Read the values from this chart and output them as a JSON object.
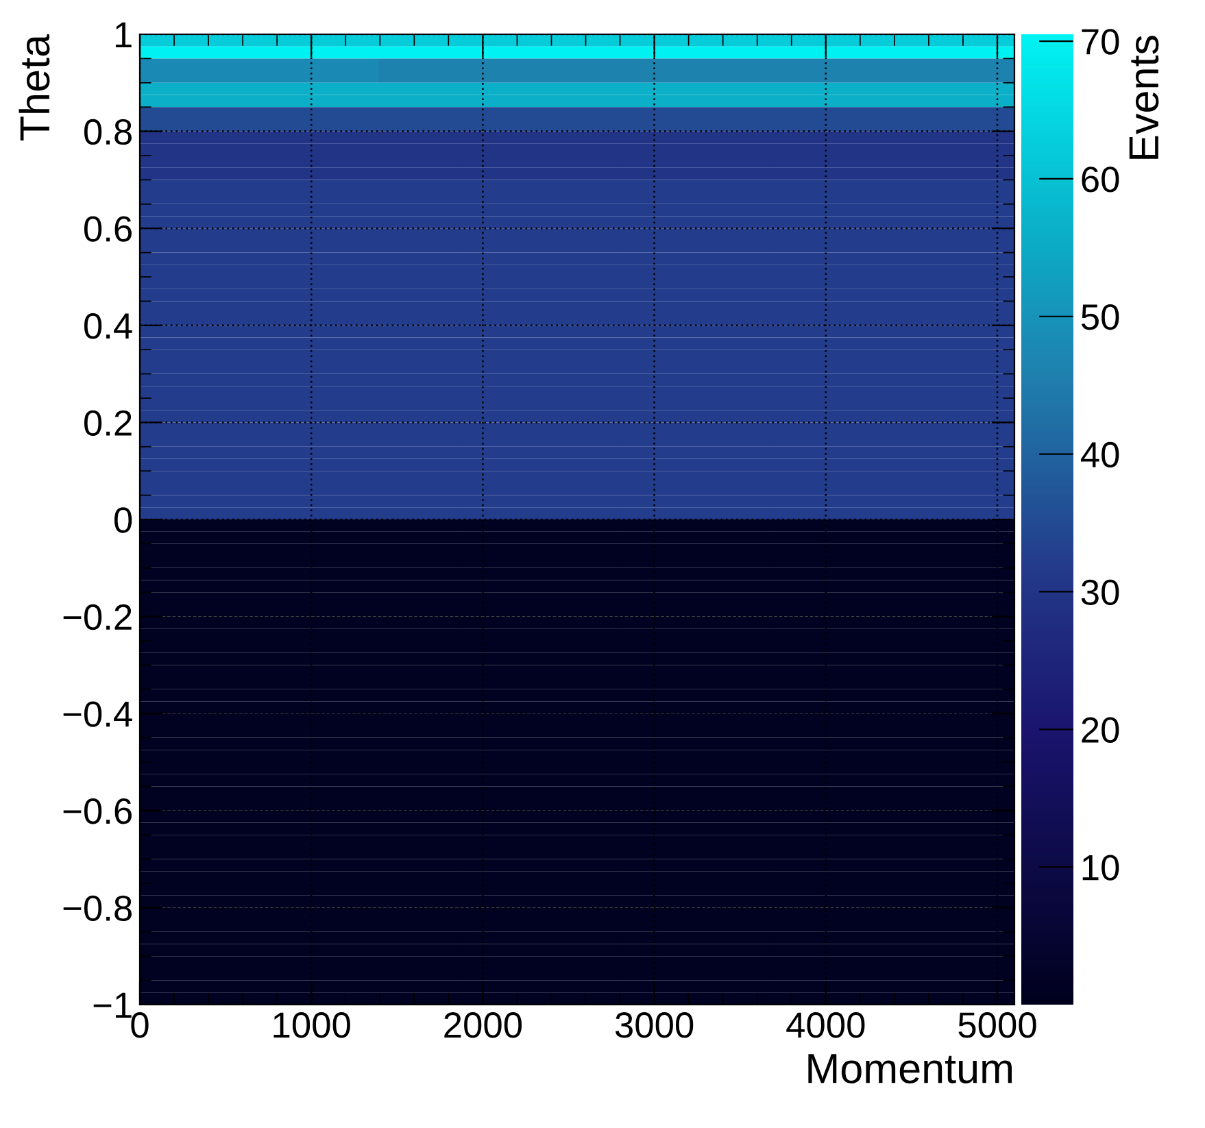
{
  "chart_data": {
    "type": "heatmap",
    "xlabel": "Momentum",
    "ylabel": "Theta",
    "clabel": "Events",
    "cells": [
      [
        62,
        62,
        62,
        62,
        62,
        62,
        62,
        62,
        62,
        62,
        62
      ],
      [
        70,
        70,
        70,
        70,
        70,
        70,
        70,
        70,
        70,
        70,
        70
      ],
      [
        48,
        48,
        48,
        46,
        46,
        46,
        46,
        46,
        46,
        46,
        46
      ],
      [
        48,
        48,
        48,
        46,
        46,
        46,
        46,
        46,
        46,
        46,
        46
      ],
      [
        56,
        56,
        56,
        56,
        56,
        56,
        56,
        56,
        56,
        56,
        56
      ],
      [
        56,
        56,
        56,
        56,
        56,
        56,
        56,
        56,
        56,
        56,
        56
      ],
      [
        35,
        35,
        35,
        35,
        35,
        35,
        35,
        35,
        35,
        35,
        35
      ],
      [
        35,
        35,
        35,
        35,
        35,
        35,
        35,
        35,
        35,
        35,
        35
      ],
      [
        30,
        30,
        30,
        30,
        30,
        30,
        30,
        30,
        30,
        30,
        30
      ],
      [
        30,
        30,
        30,
        30,
        30,
        30,
        30,
        30,
        30,
        30,
        30
      ],
      [
        30,
        30,
        30,
        30,
        30,
        30,
        30,
        30,
        30,
        30,
        30
      ],
      [
        30,
        30,
        30,
        30,
        30,
        30,
        30,
        30,
        30,
        30,
        30
      ],
      [
        32,
        32,
        32,
        32,
        32,
        32,
        32,
        32,
        32,
        32,
        32
      ],
      [
        32,
        32,
        32,
        32,
        32,
        32,
        32,
        32,
        32,
        32,
        32
      ],
      [
        32,
        32,
        32,
        32,
        32,
        32,
        32,
        32,
        32,
        32,
        32
      ],
      [
        32,
        32,
        32,
        32,
        32,
        32,
        32,
        32,
        32,
        32,
        32
      ],
      [
        32,
        32,
        32,
        32,
        32,
        32,
        32,
        32,
        32,
        32,
        32
      ],
      [
        32,
        32,
        32,
        32,
        32,
        32,
        32,
        32,
        32,
        32,
        32
      ],
      [
        32,
        32,
        32,
        32,
        32,
        32,
        32,
        32,
        32,
        32,
        32
      ],
      [
        32,
        32,
        32,
        32,
        32,
        32,
        32,
        32,
        32,
        32,
        32
      ],
      [
        32,
        32,
        32,
        32,
        32,
        32,
        32,
        32,
        32,
        32,
        32
      ],
      [
        32,
        32,
        32,
        32,
        32,
        32,
        32,
        32,
        32,
        32,
        32
      ],
      [
        32,
        32,
        32,
        32,
        32,
        32,
        32,
        32,
        32,
        32,
        32
      ],
      [
        32,
        32,
        32,
        32,
        32,
        32,
        32,
        32,
        32,
        32,
        32
      ],
      [
        32,
        32,
        32,
        32,
        32,
        32,
        32,
        32,
        32,
        32,
        32
      ],
      [
        32,
        32,
        32,
        32,
        32,
        32,
        32,
        32,
        32,
        32,
        32
      ],
      [
        32,
        32,
        32,
        32,
        32,
        32,
        32,
        32,
        32,
        32,
        32
      ],
      [
        32,
        32,
        32,
        32,
        32,
        32,
        32,
        32,
        32,
        32,
        32
      ],
      [
        32,
        32,
        32,
        32,
        32,
        32,
        32,
        32,
        32,
        32,
        32
      ],
      [
        32,
        32,
        32,
        32,
        32,
        32,
        32,
        32,
        32,
        32,
        32
      ],
      [
        32,
        32,
        32,
        32,
        32,
        32,
        32,
        32,
        32,
        32,
        32
      ],
      [
        32,
        32,
        32,
        32,
        32,
        32,
        32,
        32,
        32,
        32,
        32
      ],
      [
        32,
        32,
        32,
        32,
        32,
        32,
        32,
        32,
        32,
        32,
        32
      ],
      [
        32,
        32,
        32,
        32,
        32,
        32,
        32,
        32,
        32,
        32,
        32
      ],
      [
        32,
        32,
        32,
        32,
        32,
        32,
        32,
        32,
        32,
        32,
        32
      ],
      [
        32,
        32,
        32,
        32,
        32,
        32,
        32,
        32,
        32,
        32,
        32
      ],
      [
        32,
        32,
        32,
        32,
        32,
        32,
        32,
        32,
        32,
        32,
        32
      ],
      [
        32,
        32,
        32,
        32,
        32,
        32,
        32,
        32,
        32,
        32,
        32
      ],
      [
        32,
        32,
        32,
        32,
        32,
        32,
        32,
        32,
        32,
        32,
        32
      ],
      [
        32,
        32,
        32,
        32,
        32,
        32,
        32,
        32,
        32,
        32,
        32
      ],
      [
        1,
        1,
        1,
        1,
        1,
        1,
        1,
        1,
        1,
        1,
        1
      ],
      [
        1,
        1,
        1,
        1,
        1,
        1,
        1,
        1,
        1,
        1,
        1
      ],
      [
        1,
        1,
        1,
        1,
        1,
        1,
        1,
        1,
        1,
        1,
        1
      ],
      [
        1,
        1,
        1,
        1,
        1,
        1,
        1,
        1,
        1,
        1,
        1
      ],
      [
        1,
        1,
        1,
        1,
        1,
        1,
        1,
        1,
        1,
        1,
        1
      ],
      [
        1,
        1,
        1,
        1,
        1,
        1,
        1,
        1,
        1,
        1,
        1
      ],
      [
        1,
        1,
        1,
        1,
        1,
        1,
        1,
        1,
        1,
        1,
        1
      ],
      [
        1,
        1,
        1,
        1,
        1,
        1,
        1,
        1,
        1,
        1,
        1
      ],
      [
        1,
        1,
        1,
        1,
        1,
        1,
        1,
        1,
        1,
        1,
        1
      ],
      [
        1,
        1,
        1,
        1,
        1,
        1,
        1,
        1,
        1,
        1,
        1
      ],
      [
        1,
        1,
        1,
        1,
        1,
        1,
        1,
        1,
        1,
        1,
        1
      ],
      [
        1,
        1,
        1,
        1,
        1,
        1,
        1,
        1,
        1,
        1,
        1
      ],
      [
        1,
        1,
        1,
        1,
        1,
        1,
        1,
        1,
        1,
        1,
        1
      ],
      [
        1,
        1,
        1,
        1,
        1,
        1,
        1,
        1,
        1,
        1,
        1
      ],
      [
        1,
        1,
        1,
        1,
        1,
        1,
        1,
        1,
        1,
        1,
        1
      ],
      [
        1,
        1,
        1,
        1,
        1,
        1,
        1,
        1,
        1,
        1,
        1
      ],
      [
        1,
        1,
        1,
        1,
        1,
        1,
        1,
        1,
        1,
        1,
        1
      ],
      [
        1,
        1,
        1,
        1,
        1,
        1,
        1,
        1,
        1,
        1,
        1
      ],
      [
        1,
        1,
        1,
        1,
        1,
        1,
        1,
        1,
        1,
        1,
        1
      ],
      [
        1,
        1,
        1,
        1,
        1,
        1,
        1,
        1,
        1,
        1,
        1
      ],
      [
        1,
        1,
        1,
        1,
        1,
        1,
        1,
        1,
        1,
        1,
        1
      ],
      [
        1,
        1,
        1,
        1,
        1,
        1,
        1,
        1,
        1,
        1,
        1
      ],
      [
        1,
        1,
        1,
        1,
        1,
        1,
        1,
        1,
        1,
        1,
        1
      ],
      [
        1,
        1,
        1,
        1,
        1,
        1,
        1,
        1,
        1,
        1,
        1
      ],
      [
        1,
        1,
        1,
        1,
        1,
        1,
        1,
        1,
        1,
        1,
        1
      ],
      [
        1,
        1,
        1,
        1,
        1,
        1,
        1,
        1,
        1,
        1,
        1
      ],
      [
        1,
        1,
        1,
        1,
        1,
        1,
        1,
        1,
        1,
        1,
        1
      ],
      [
        1,
        1,
        1,
        1,
        1,
        1,
        1,
        1,
        1,
        1,
        1
      ],
      [
        1,
        1,
        1,
        1,
        1,
        1,
        1,
        1,
        1,
        1,
        1
      ],
      [
        1,
        1,
        1,
        1,
        1,
        1,
        1,
        1,
        1,
        1,
        1
      ],
      [
        1,
        1,
        1,
        1,
        1,
        1,
        1,
        1,
        1,
        1,
        1
      ],
      [
        1,
        1,
        1,
        1,
        1,
        1,
        1,
        1,
        1,
        1,
        1
      ],
      [
        1,
        1,
        1,
        1,
        1,
        1,
        1,
        1,
        1,
        1,
        1
      ],
      [
        1,
        1,
        1,
        1,
        1,
        1,
        1,
        1,
        1,
        1,
        1
      ],
      [
        1,
        1,
        1,
        1,
        1,
        1,
        1,
        1,
        1,
        1,
        1
      ],
      [
        1,
        1,
        1,
        1,
        1,
        1,
        1,
        1,
        1,
        1,
        1
      ],
      [
        1,
        1,
        1,
        1,
        1,
        1,
        1,
        1,
        1,
        1,
        1
      ],
      [
        1,
        1,
        1,
        1,
        1,
        1,
        1,
        1,
        1,
        1,
        1
      ],
      [
        1,
        1,
        1,
        1,
        1,
        1,
        1,
        1,
        1,
        1,
        1
      ],
      [
        1,
        1,
        1,
        1,
        1,
        1,
        1,
        1,
        1,
        1,
        1
      ]
    ],
    "xlim": [
      0,
      5100
    ],
    "ylim": [
      -1,
      1
    ],
    "xticks": [
      0,
      1000,
      2000,
      3000,
      4000,
      5000
    ],
    "yticks": [
      {
        "value": -1,
        "label": "−1"
      },
      {
        "value": -0.8,
        "label": "−0.8"
      },
      {
        "value": -0.6,
        "label": "−0.6"
      },
      {
        "value": -0.4,
        "label": "−0.4"
      },
      {
        "value": -0.2,
        "label": "−0.2"
      },
      0,
      0.2,
      0.4,
      0.6,
      0.8,
      1
    ],
    "clim": [
      0,
      70.5
    ],
    "cticks": [
      10,
      20,
      30,
      40,
      50,
      60,
      70
    ],
    "grid": true
  }
}
